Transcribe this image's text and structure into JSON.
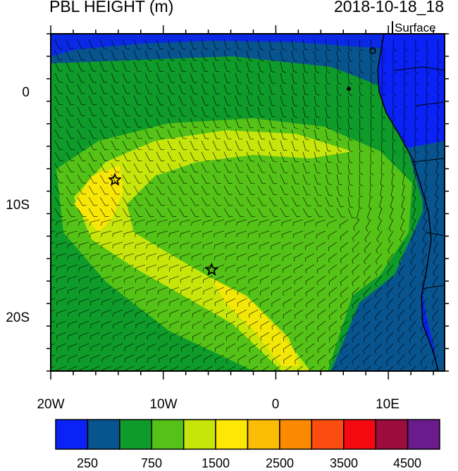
{
  "title": "PBL HEIGHT (m)",
  "valid_time": "2018-10-18_18",
  "level": "Surface",
  "map": {
    "lon_range": [
      -20,
      15
    ],
    "lat_range": [
      -25,
      5
    ],
    "x_tick_labels": [
      "20W",
      "10W",
      "0",
      "10E"
    ],
    "y_tick_labels": [
      "0",
      "10S",
      "20S"
    ],
    "markers": [
      {
        "type": "star-icon",
        "lon": -14.3,
        "lat": -8.0
      },
      {
        "type": "star-icon",
        "lon": -5.7,
        "lat": -16.0
      }
    ]
  },
  "colorbar": {
    "colors": [
      "#0a22f5",
      "#08548e",
      "#0f9b2a",
      "#55c217",
      "#c5e50b",
      "#fde705",
      "#fbbd04",
      "#fb8a00",
      "#fa4d0f",
      "#f50a12",
      "#9c0c3d",
      "#6a1c8e"
    ],
    "labels": [
      "250",
      "750",
      "1500",
      "2500",
      "3500",
      "4500"
    ]
  }
}
